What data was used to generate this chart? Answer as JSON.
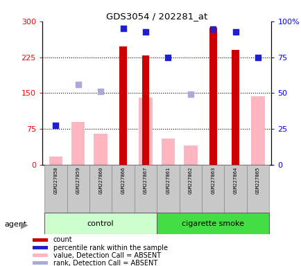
{
  "title": "GDS3054 / 202281_at",
  "samples": [
    "GSM227858",
    "GSM227859",
    "GSM227860",
    "GSM227866",
    "GSM227867",
    "GSM227861",
    "GSM227862",
    "GSM227863",
    "GSM227864",
    "GSM227865"
  ],
  "count_values": [
    null,
    null,
    null,
    247,
    228,
    null,
    null,
    286,
    240,
    null
  ],
  "percentile_rank_values": [
    82,
    null,
    null,
    285,
    278,
    225,
    null,
    283,
    278,
    225
  ],
  "absent_value_values": [
    18,
    90,
    65,
    null,
    140,
    55,
    40,
    null,
    null,
    143
  ],
  "absent_rank_values": [
    null,
    168,
    153,
    null,
    null,
    null,
    148,
    null,
    null,
    null
  ],
  "ylim_left": [
    0,
    300
  ],
  "ylim_right": [
    0,
    100
  ],
  "yticks_left": [
    0,
    75,
    150,
    225,
    300
  ],
  "yticks_left_labels": [
    "0",
    "75",
    "150",
    "225",
    "300"
  ],
  "yticks_right": [
    0,
    25,
    50,
    75,
    100
  ],
  "yticks_right_labels": [
    "0",
    "25",
    "50",
    "75",
    "100%"
  ],
  "hlines": [
    75,
    150,
    225
  ],
  "bar_color_count": "#CC0000",
  "bar_color_absent_value": "#FFB6C1",
  "dot_color_percentile": "#1F1FCC",
  "dot_color_absent_rank": "#AAAADD",
  "control_color_light": "#CCFFCC",
  "smoke_color_bright": "#44DD44",
  "legend_items": [
    {
      "label": "count",
      "color": "#CC0000"
    },
    {
      "label": "percentile rank within the sample",
      "color": "#1F1FCC"
    },
    {
      "label": "value, Detection Call = ABSENT",
      "color": "#FFB6C1"
    },
    {
      "label": "rank, Detection Call = ABSENT",
      "color": "#AAAADD"
    }
  ]
}
